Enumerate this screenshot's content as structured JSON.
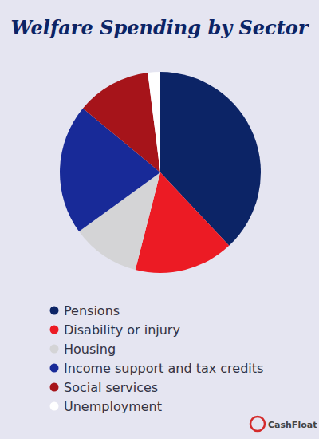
{
  "chart_data": {
    "type": "pie",
    "title": "Welfare Spending by Sector",
    "categories": [
      "Pensions",
      "Disability or injury",
      "Housing",
      "Income support and tax credits",
      "Social services",
      "Unemployment"
    ],
    "values": [
      38,
      16,
      11,
      21,
      12,
      2
    ],
    "colors": [
      "#0c2466",
      "#ec1b24",
      "#d4d4d6",
      "#182a98",
      "#a6141a",
      "#ffffff"
    ],
    "legend": "bottom",
    "source": "CashFloat"
  }
}
